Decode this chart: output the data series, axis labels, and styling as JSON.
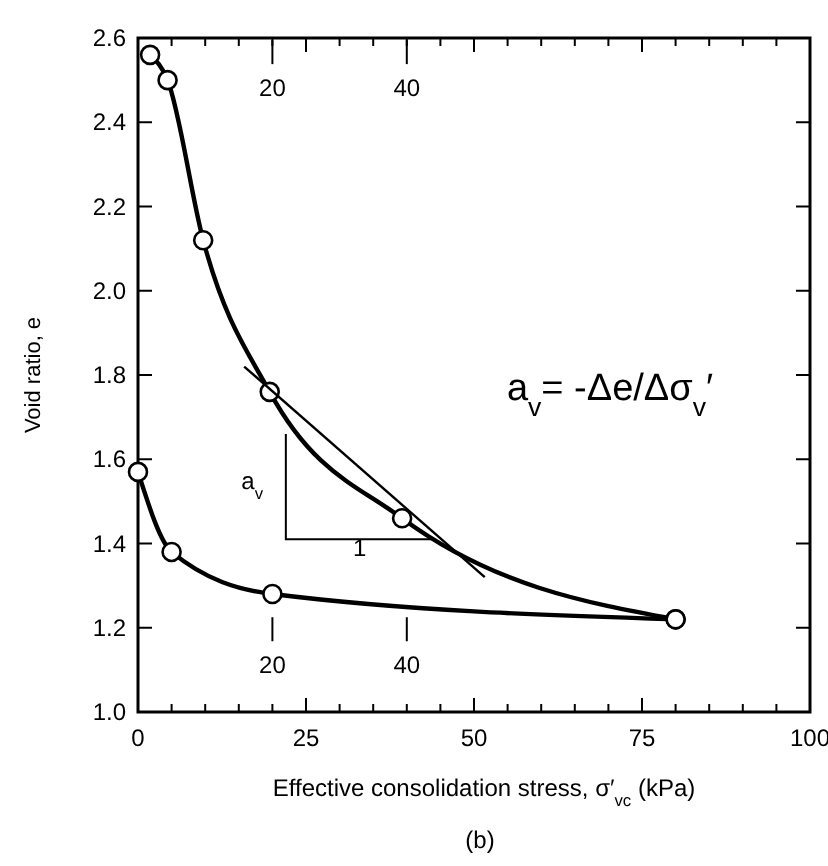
{
  "chart_data": {
    "type": "line",
    "xlabel": "Effective consolidation stress, σ′$_{vc}$ (kPa)",
    "ylabel": "Void ratio, e",
    "xlim": [
      0,
      100
    ],
    "ylim": [
      1.0,
      2.6
    ],
    "xticks": [
      {
        "value": 0,
        "label": "0"
      },
      {
        "value": 5,
        "label": null
      },
      {
        "value": 10,
        "label": null
      },
      {
        "value": 15,
        "label": null
      },
      {
        "value": 20,
        "label": null
      },
      {
        "value": 25,
        "label": "25"
      },
      {
        "value": 30,
        "label": null
      },
      {
        "value": 35,
        "label": null
      },
      {
        "value": 40,
        "label": null
      },
      {
        "value": 45,
        "label": null
      },
      {
        "value": 50,
        "label": "50"
      },
      {
        "value": 55,
        "label": null
      },
      {
        "value": 60,
        "label": null
      },
      {
        "value": 65,
        "label": null
      },
      {
        "value": 70,
        "label": null
      },
      {
        "value": 75,
        "label": "75"
      },
      {
        "value": 80,
        "label": null
      },
      {
        "value": 85,
        "label": null
      },
      {
        "value": 90,
        "label": null
      },
      {
        "value": 95,
        "label": null
      },
      {
        "value": 100,
        "label": "100"
      }
    ],
    "yticks": [
      {
        "value": 1.0,
        "label": "1.0"
      },
      {
        "value": 1.2,
        "label": "1.2"
      },
      {
        "value": 1.4,
        "label": "1.4"
      },
      {
        "value": 1.6,
        "label": "1.6"
      },
      {
        "value": 1.8,
        "label": "1.8"
      },
      {
        "value": 2.0,
        "label": "2.0"
      },
      {
        "value": 2.2,
        "label": "2.2"
      },
      {
        "value": 2.4,
        "label": "2.4"
      },
      {
        "value": 2.6,
        "label": "2.6"
      }
    ],
    "grid": false,
    "line_style": "solid",
    "series": [
      {
        "color": "#000000",
        "marker": "circle",
        "x": [
          1.8,
          4.4,
          9.7,
          19.6,
          39.3,
          80
        ],
        "values": [
          2.56,
          2.5,
          2.12,
          1.76,
          1.46,
          1.22
        ]
      },
      {
        "color": "#000000",
        "marker": "circle",
        "x": [
          0,
          5,
          20,
          80
        ],
        "values": [
          1.57,
          1.38,
          1.28,
          1.22
        ]
      },
      {
        "color": "#000000",
        "marker": "none",
        "x": [
          15.8,
          51.6
        ],
        "values": [
          1.82,
          1.32
        ]
      }
    ],
    "annotations": [
      "20",
      "40",
      "20",
      "40",
      "a$_{v}$= -Δe/Δσ$_{v}$′",
      "a$_{v}$",
      "1",
      "(b)"
    ]
  }
}
